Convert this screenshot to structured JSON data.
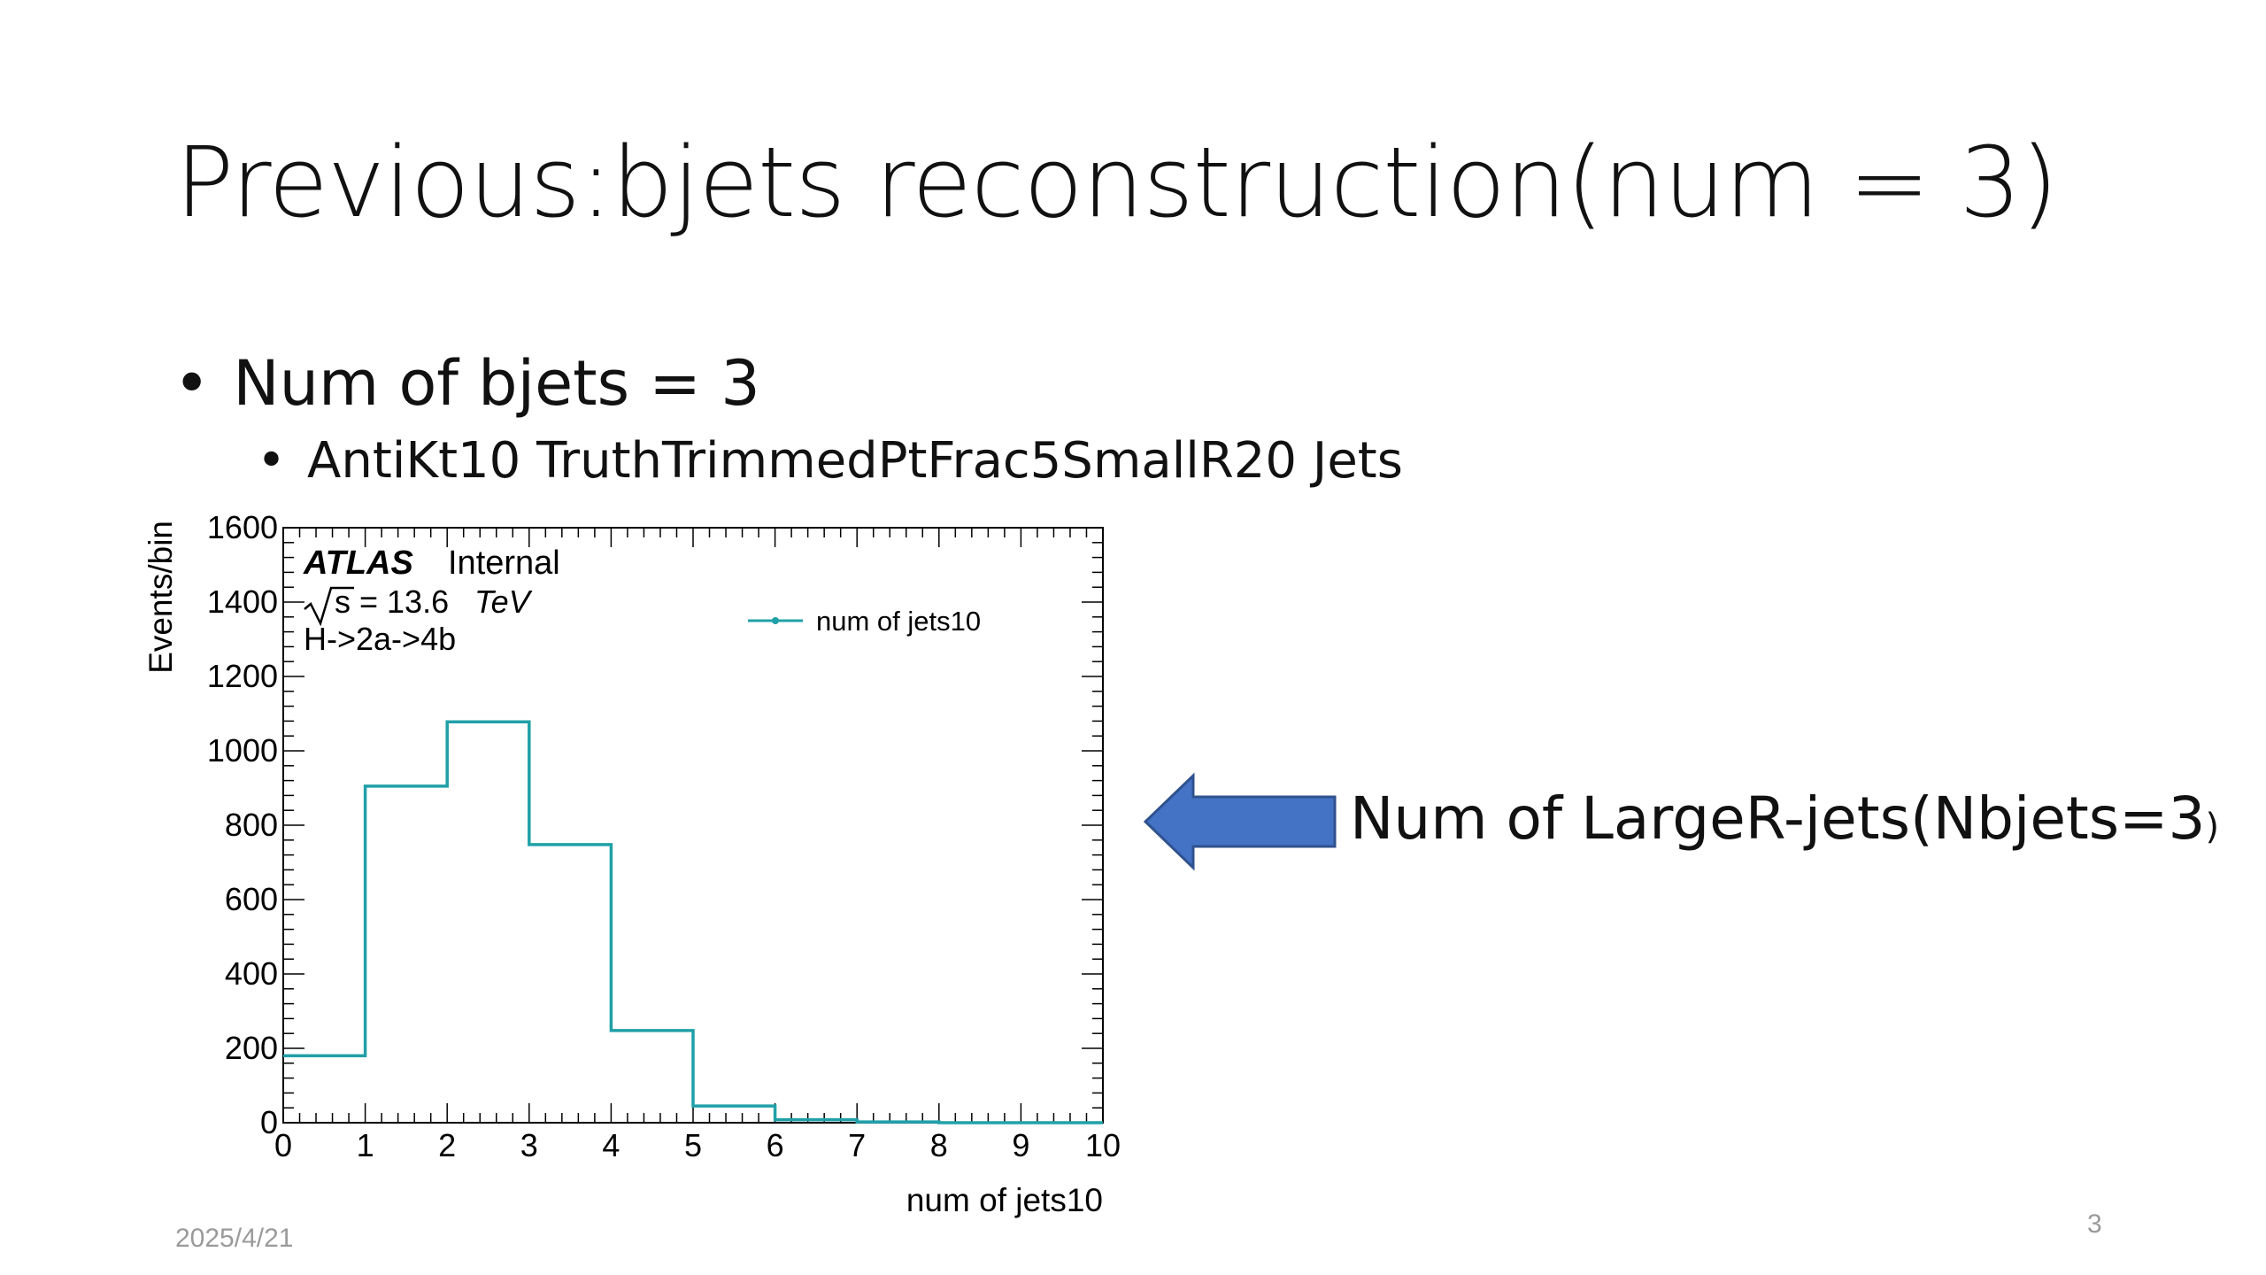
{
  "slide": {
    "title": "Previous:bjets reconstruction(num = 3)",
    "bullet1": "Num of bjets = 3",
    "bullet2": "AntiKt10 TruthTrimmedPtFrac5SmallR20 Jets",
    "side_label": "Num of LargeR-jets(Nbjets=3",
    "side_label_paren": ")",
    "date": "2025/4/21",
    "page_number": "3",
    "bullet_symbol": "•",
    "arrow_color": "#4472c4"
  },
  "chart_data": {
    "type": "histogram",
    "xlabel": "num of jets10",
    "ylabel": "Events/bin",
    "xlim": [
      0,
      10
    ],
    "ylim": [
      0,
      1600
    ],
    "x_ticks": [
      "0",
      "1",
      "2",
      "3",
      "4",
      "5",
      "6",
      "7",
      "8",
      "9",
      "10"
    ],
    "y_ticks": [
      "0",
      "200",
      "400",
      "600",
      "800",
      "1000",
      "1200",
      "1400",
      "1600"
    ],
    "bin_edges": [
      0,
      1,
      2,
      3,
      4,
      5,
      6,
      7,
      8,
      9,
      10
    ],
    "series": [
      {
        "name": "num of jets10",
        "color": "#20a0a8",
        "values": [
          180,
          905,
          1078,
          748,
          248,
          45,
          8,
          2,
          0,
          0
        ]
      }
    ],
    "annotations": {
      "experiment": "ATLAS",
      "status": "Internal",
      "energy_prefix": "s = 13.6",
      "energy_unit": "TeV",
      "process": "H->2a->4b"
    },
    "legend_position": "top-right",
    "grid": false
  }
}
